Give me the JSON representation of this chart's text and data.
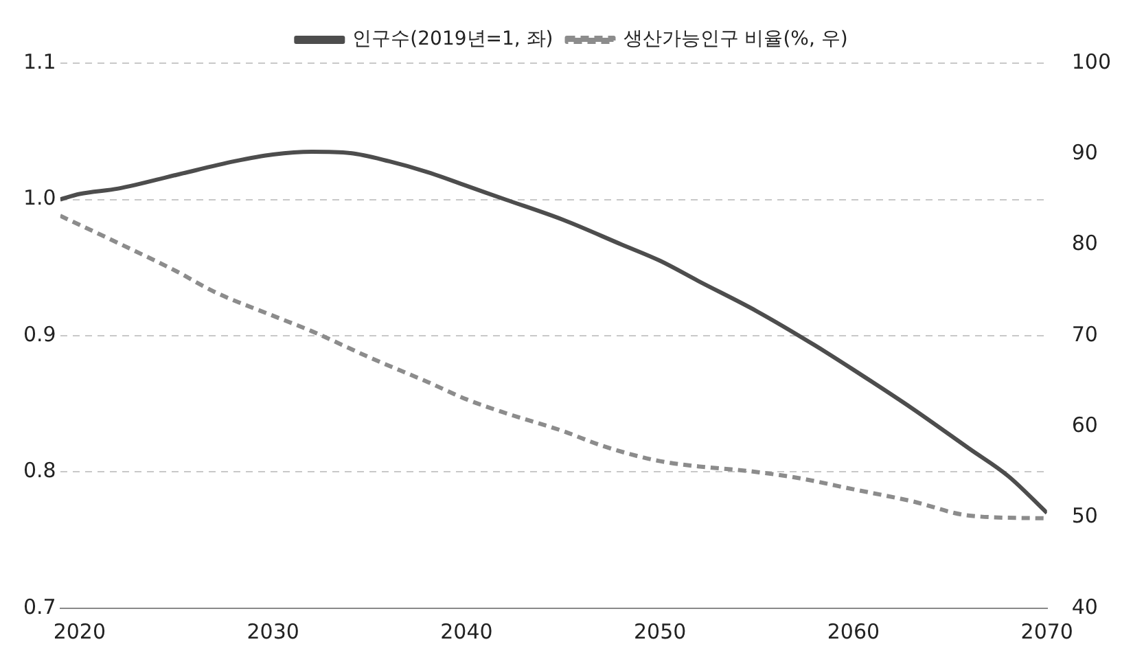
{
  "chart_data": {
    "type": "line",
    "series": [
      {
        "name": "인구수(2019년=1, 좌)",
        "color": "#4d4d4d",
        "line_style": "solid",
        "x": [
          2019,
          2020,
          2022,
          2025,
          2028,
          2030,
          2032,
          2034,
          2036,
          2038,
          2040,
          2042,
          2045,
          2048,
          2050,
          2052,
          2055,
          2058,
          2060,
          2063,
          2066,
          2068,
          2070
        ],
        "values": [
          1.0,
          1.004,
          1.008,
          1.018,
          1.028,
          1.033,
          1.035,
          1.034,
          1.028,
          1.02,
          1.01,
          1.0,
          0.985,
          0.967,
          0.955,
          0.94,
          0.918,
          0.893,
          0.875,
          0.847,
          0.817,
          0.797,
          0.77
        ]
      },
      {
        "name": "생산가능인구 비율(%, 우)",
        "color": "#8c8c8c",
        "line_style": "dashed",
        "axis": "y2",
        "x": [
          2019,
          2022,
          2025,
          2027,
          2030,
          2032,
          2035,
          2038,
          2040,
          2042,
          2045,
          2047,
          2050,
          2055,
          2057,
          2060,
          2063,
          2066,
          2070
        ],
        "values": [
          83.2,
          80.2,
          77.1,
          74.8,
          72.2,
          70.5,
          67.6,
          64.9,
          63,
          61.5,
          59.5,
          57.9,
          56.2,
          55,
          54.4,
          53.1,
          51.8,
          50.2,
          49.9
        ]
      }
    ],
    "xlim": [
      2019,
      2070
    ],
    "xticks": [
      2020,
      2030,
      2040,
      2050,
      2060,
      2070
    ],
    "ylim": [
      0.7,
      1.1
    ],
    "yticks": [
      {
        "value": 0.7,
        "label": "0.7"
      },
      {
        "value": 0.8,
        "label": "0.8"
      },
      {
        "value": 0.9,
        "label": "0.9"
      },
      {
        "value": 1.0,
        "label": "1.0"
      },
      {
        "value": 1.1,
        "label": "1.1"
      }
    ],
    "y2lim": [
      40,
      100
    ],
    "y2ticks": [
      40,
      50,
      60,
      70,
      80,
      90,
      100
    ],
    "grid": "y",
    "legend": "top",
    "marker": "none"
  }
}
